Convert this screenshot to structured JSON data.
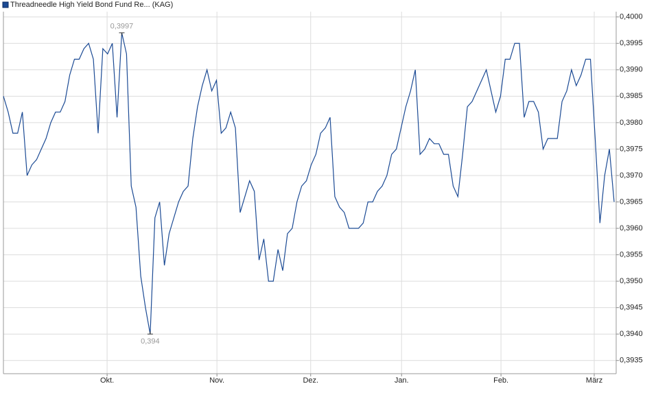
{
  "chart_data": {
    "type": "line",
    "legend": "Threadneedle High Yield Bond Fund Re... (KAG)",
    "series": [
      {
        "name": "Threadneedle High Yield Bond Fund Re... (KAG)",
        "color": "#1b4a94",
        "values": [
          0.3985,
          0.3982,
          0.3978,
          0.3978,
          0.3982,
          0.397,
          0.3972,
          0.3973,
          0.3975,
          0.3977,
          0.398,
          0.3982,
          0.3982,
          0.3984,
          0.3989,
          0.3992,
          0.3992,
          0.3994,
          0.3995,
          0.3992,
          0.3978,
          0.3994,
          0.3993,
          0.3995,
          0.3981,
          0.3997,
          0.3993,
          0.3968,
          0.3964,
          0.3951,
          0.3945,
          0.394,
          0.3962,
          0.3965,
          0.3953,
          0.3959,
          0.3962,
          0.3965,
          0.3967,
          0.3968,
          0.3977,
          0.3983,
          0.3987,
          0.399,
          0.3986,
          0.3988,
          0.3978,
          0.3979,
          0.3982,
          0.3979,
          0.3963,
          0.3966,
          0.3969,
          0.3967,
          0.3954,
          0.3958,
          0.395,
          0.395,
          0.3956,
          0.3952,
          0.3959,
          0.396,
          0.3965,
          0.3968,
          0.3969,
          0.3972,
          0.3974,
          0.3978,
          0.3979,
          0.3981,
          0.3966,
          0.3964,
          0.3963,
          0.396,
          0.396,
          0.396,
          0.3961,
          0.3965,
          0.3965,
          0.3967,
          0.3968,
          0.397,
          0.3974,
          0.3975,
          0.3979,
          0.3983,
          0.3986,
          0.399,
          0.3974,
          0.3975,
          0.3977,
          0.3976,
          0.3976,
          0.3974,
          0.3974,
          0.3968,
          0.3966,
          0.3974,
          0.3983,
          0.3984,
          0.3986,
          0.3988,
          0.399,
          0.3986,
          0.3982,
          0.3985,
          0.3992,
          0.3992,
          0.3995,
          0.3995,
          0.3981,
          0.3984,
          0.3984,
          0.3982,
          0.3975,
          0.3977,
          0.3977,
          0.3977,
          0.3984,
          0.3986,
          0.399,
          0.3987,
          0.3989,
          0.3992,
          0.3992,
          0.3977,
          0.3961,
          0.397,
          0.3975,
          0.3965
        ]
      }
    ],
    "xlim": [
      0,
      129
    ],
    "xticks": [
      {
        "value": 21.9,
        "label": "Okt."
      },
      {
        "value": 45.1,
        "label": "Nov."
      },
      {
        "value": 64.9,
        "label": "Dez."
      },
      {
        "value": 84.1,
        "label": "Jan."
      },
      {
        "value": 105.1,
        "label": "Feb."
      },
      {
        "value": 124.8,
        "label": "März"
      }
    ],
    "ylim": [
      0.39325,
      0.4001
    ],
    "yticks": [
      {
        "value": 0.3935,
        "label": "0,3935"
      },
      {
        "value": 0.394,
        "label": "0,3940"
      },
      {
        "value": 0.3945,
        "label": "0,3945"
      },
      {
        "value": 0.395,
        "label": "0,3950"
      },
      {
        "value": 0.3955,
        "label": "0,3955"
      },
      {
        "value": 0.396,
        "label": "0,3960"
      },
      {
        "value": 0.3965,
        "label": "0,3965"
      },
      {
        "value": 0.397,
        "label": "0,3970"
      },
      {
        "value": 0.3975,
        "label": "0,3975"
      },
      {
        "value": 0.398,
        "label": "0,3980"
      },
      {
        "value": 0.3985,
        "label": "0,3985"
      },
      {
        "value": 0.399,
        "label": "0,3990"
      },
      {
        "value": 0.3995,
        "label": "0,3995"
      },
      {
        "value": 0.4,
        "label": "0,4000"
      }
    ],
    "annotations": [
      {
        "text": "0,3997",
        "x": 25,
        "y": 0.3997
      },
      {
        "text": "0,394",
        "x": 31,
        "y": 0.394
      }
    ],
    "grid": true
  }
}
